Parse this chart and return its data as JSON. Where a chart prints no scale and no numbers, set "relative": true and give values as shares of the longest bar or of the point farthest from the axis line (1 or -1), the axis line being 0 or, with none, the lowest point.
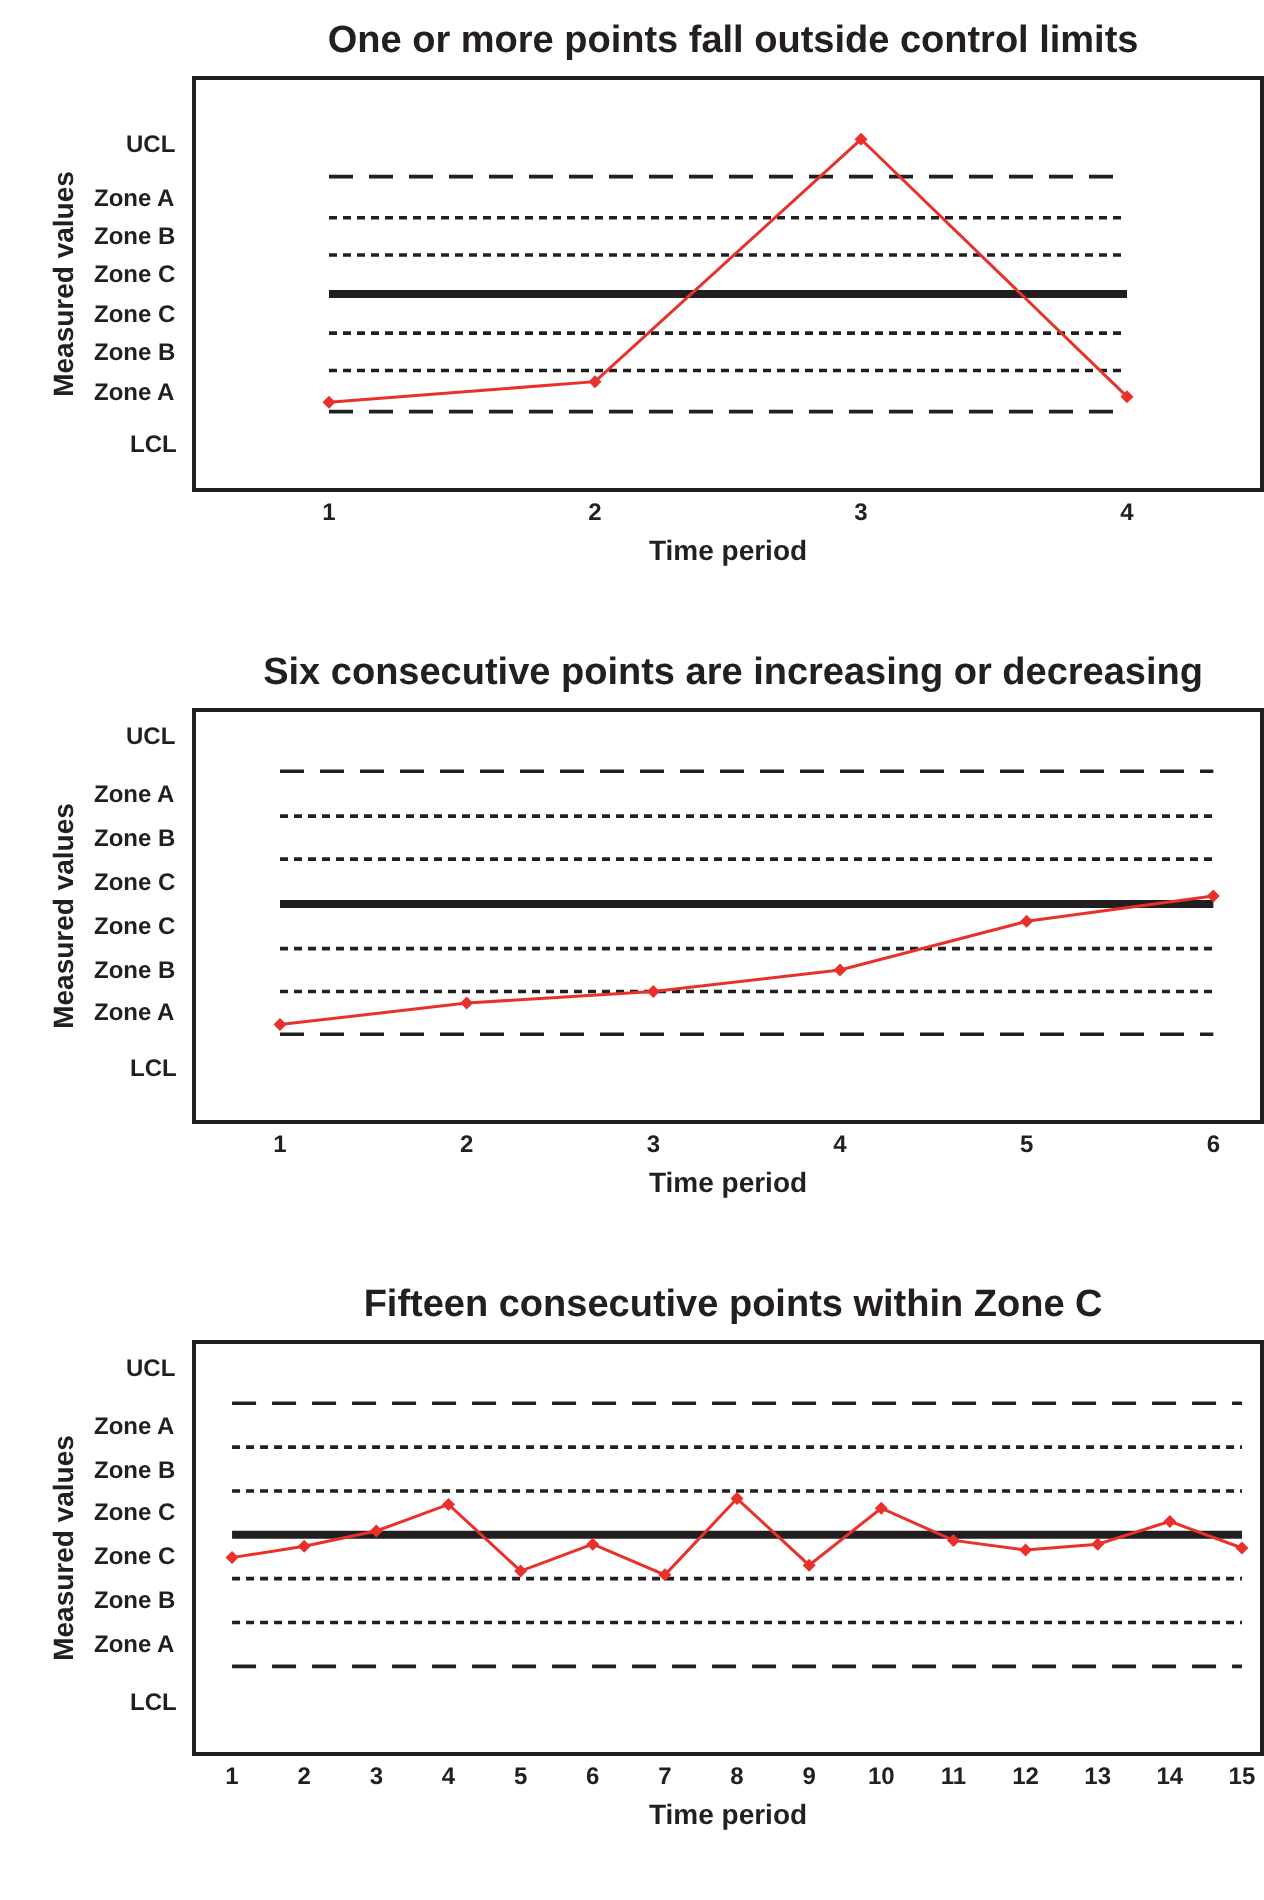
{
  "chart_data": [
    {
      "type": "line",
      "title": "One or more points fall outside control limits",
      "xlabel": "Time period",
      "ylabel": "Measured values",
      "x": [
        1,
        2,
        3,
        4
      ],
      "relative": true,
      "series": [
        {
          "color": "#e8312a",
          "values": [
            0.246,
            0.305,
            1,
            0.262
          ]
        }
      ],
      "xlim": [
        0.5,
        4.5
      ],
      "xticks": [
        1,
        2,
        3,
        4
      ],
      "tick_labels": "x",
      "ref_lines": [
        {
          "axis": "y",
          "value": 0.893,
          "line_style": "dashed",
          "color": "#231f20"
        },
        {
          "axis": "y",
          "value": 0.775,
          "line_style": "dotted",
          "color": "#231f20"
        },
        {
          "axis": "y",
          "value": 0.668,
          "line_style": "dotted",
          "color": "#231f20"
        },
        {
          "axis": "y",
          "value": 0.556,
          "line_style": "solid",
          "color": "#231f20"
        },
        {
          "axis": "y",
          "value": 0.444,
          "line_style": "dotted",
          "color": "#231f20"
        },
        {
          "axis": "y",
          "value": 0.337,
          "line_style": "dotted",
          "color": "#231f20"
        },
        {
          "axis": "y",
          "value": 0.219,
          "line_style": "dashed",
          "color": "#231f20"
        }
      ],
      "annotations": [
        "UCL",
        "Zone A",
        "Zone B",
        "Zone C",
        "Zone C",
        "Zone B",
        "Zone A",
        "LCL"
      ],
      "marker": "diamond",
      "grid": false
    },
    {
      "type": "line",
      "title": "Six consecutive points are increasing or decreasing",
      "xlabel": "Time period",
      "ylabel": "Measured values",
      "x": [
        1,
        2,
        3,
        4,
        5,
        6
      ],
      "relative": true,
      "series": [
        {
          "color": "#e8312a",
          "values": [
            0.426,
            0.522,
            0.574,
            0.67,
            0.887,
            1
          ]
        }
      ],
      "xlim": [
        0.55,
        6.25
      ],
      "xticks": [
        1,
        2,
        3,
        4,
        5,
        6
      ],
      "tick_labels": "x",
      "ref_lines": [
        {
          "axis": "y",
          "value": 1.557,
          "line_style": "dashed",
          "color": "#231f20"
        },
        {
          "axis": "y",
          "value": 1.357,
          "line_style": "dotted",
          "color": "#231f20"
        },
        {
          "axis": "y",
          "value": 1.165,
          "line_style": "dotted",
          "color": "#231f20"
        },
        {
          "axis": "y",
          "value": 0.965,
          "line_style": "solid",
          "color": "#231f20"
        },
        {
          "axis": "y",
          "value": 0.765,
          "line_style": "dotted",
          "color": "#231f20"
        },
        {
          "axis": "y",
          "value": 0.574,
          "line_style": "dotted",
          "color": "#231f20"
        },
        {
          "axis": "y",
          "value": 0.383,
          "line_style": "dashed",
          "color": "#231f20"
        }
      ],
      "annotations": [
        "UCL",
        "Zone A",
        "Zone B",
        "Zone C",
        "Zone C",
        "Zone B",
        "Zone A",
        "LCL"
      ],
      "marker": "diamond",
      "grid": false
    },
    {
      "type": "line",
      "title": "Fifteen consecutive points within Zone C",
      "xlabel": "Time period",
      "ylabel": "Measured values",
      "x": [
        1,
        2,
        3,
        4,
        5,
        6,
        7,
        8,
        9,
        10,
        11,
        12,
        13,
        14,
        15
      ],
      "relative": true,
      "series": [
        {
          "color": "#e8312a",
          "values": [
            0.767,
            0.812,
            0.872,
            0.977,
            0.714,
            0.82,
            0.699,
            1,
            0.737,
            0.962,
            0.835,
            0.797,
            0.82,
            0.91,
            0.805
          ]
        }
      ],
      "xlim": [
        0.5,
        15.25
      ],
      "xticks": [
        1,
        2,
        3,
        4,
        5,
        6,
        7,
        8,
        9,
        10,
        11,
        12,
        13,
        14,
        15
      ],
      "tick_labels": "x",
      "ref_lines": [
        {
          "axis": "y",
          "value": 1.376,
          "line_style": "dashed",
          "color": "#231f20"
        },
        {
          "axis": "y",
          "value": 1.203,
          "line_style": "dotted",
          "color": "#231f20"
        },
        {
          "axis": "y",
          "value": 1.03,
          "line_style": "dotted",
          "color": "#231f20"
        },
        {
          "axis": "y",
          "value": 0.857,
          "line_style": "solid",
          "color": "#231f20"
        },
        {
          "axis": "y",
          "value": 0.684,
          "line_style": "dotted",
          "color": "#231f20"
        },
        {
          "axis": "y",
          "value": 0.511,
          "line_style": "dotted",
          "color": "#231f20"
        },
        {
          "axis": "y",
          "value": 0.338,
          "line_style": "dashed",
          "color": "#231f20"
        }
      ],
      "annotations": [
        "UCL",
        "Zone A",
        "Zone B",
        "Zone C",
        "Zone C",
        "Zone B",
        "Zone A",
        "LCL"
      ],
      "marker": "diamond",
      "grid": false
    }
  ]
}
